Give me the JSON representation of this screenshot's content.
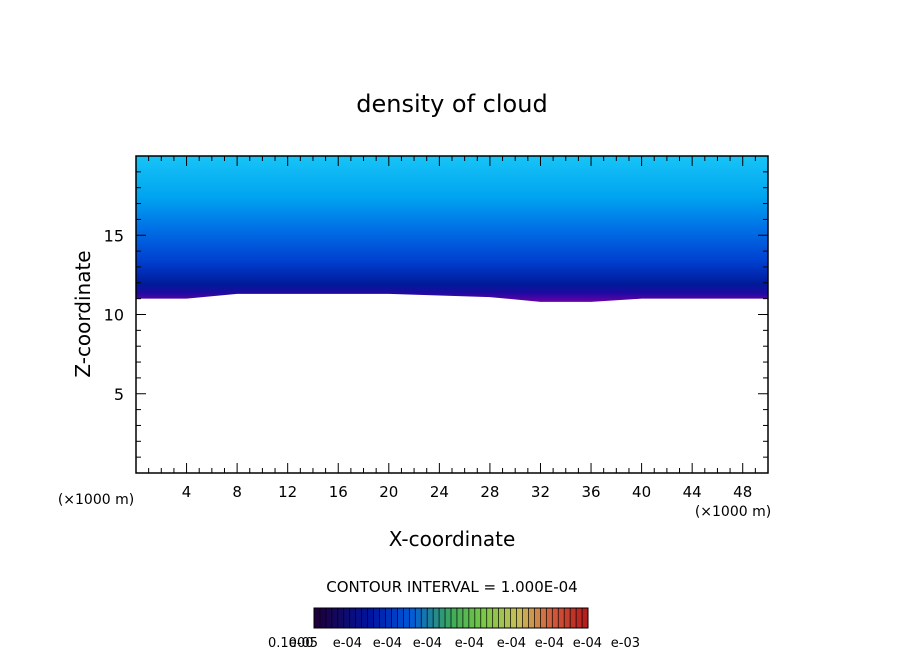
{
  "chart_data": {
    "type": "heatmap",
    "title": "density of cloud",
    "xlabel": "X-coordinate",
    "ylabel": "Z-coordinate",
    "x_unit": "(×1000 m)",
    "y_unit": "(×1000 m)",
    "xlim": [
      0,
      50
    ],
    "ylim": [
      0,
      20
    ],
    "x_ticks": [
      4,
      8,
      12,
      16,
      20,
      24,
      28,
      32,
      36,
      40,
      44,
      48
    ],
    "y_ticks": [
      5,
      10,
      15
    ],
    "contour_interval_label": "CONTOUR INTERVAL = 1.000E-04",
    "colorbar_labels": [
      "0.1000",
      "e-05",
      "e-04",
      "e-04",
      "e-04",
      "e-04",
      "e-04",
      "e-04",
      "e-04",
      "e-03"
    ],
    "field_x": [
      0,
      4,
      8,
      12,
      16,
      20,
      24,
      28,
      32,
      36,
      40,
      44,
      48,
      50
    ],
    "cloud_base_z": [
      11.0,
      11.0,
      11.3,
      11.3,
      11.3,
      11.3,
      11.2,
      11.1,
      10.8,
      10.8,
      11.0,
      11.0,
      11.0,
      11.0
    ],
    "cloud_top_z": [
      20,
      20,
      20,
      20,
      20,
      20,
      20,
      20,
      20,
      20,
      20,
      20,
      20,
      20
    ],
    "colors": {
      "base_band": "#6a00a8",
      "dense_band": "#001a9a",
      "mid_band": "#0060e0",
      "upper_band": "#00aaf0",
      "top_band": "#18c4f6"
    },
    "legend_position": "bottom-center"
  }
}
